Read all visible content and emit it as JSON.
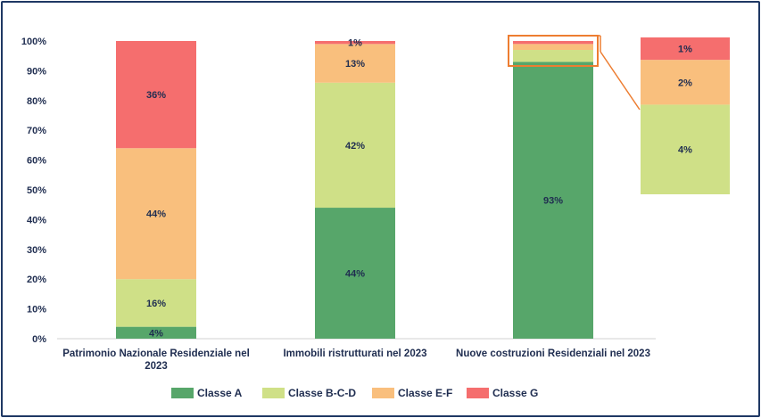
{
  "chart_data": {
    "type": "bar",
    "stacked": true,
    "categories": [
      "Patrimonio Nazionale Residenziale nel 2023",
      "Immobili ristrutturati nel 2023",
      "Nuove costruzioni Residenziali nel 2023"
    ],
    "category_lines": [
      [
        "Patrimonio Nazionale Residenziale nel",
        "2023"
      ],
      [
        "Immobili ristrutturati nel 2023"
      ],
      [
        "Nuove costruzioni Residenziali nel 2023"
      ]
    ],
    "series": [
      {
        "name": "Classe A",
        "color": "#57a66a",
        "values": [
          4,
          44,
          93
        ],
        "labels": [
          "4%",
          "44%",
          "93%"
        ]
      },
      {
        "name": "Classe B-C-D",
        "color": "#cfe087",
        "values": [
          16,
          42,
          4
        ],
        "labels": [
          "16%",
          "42%",
          ""
        ]
      },
      {
        "name": "Classe E-F",
        "color": "#f9bf7d",
        "values": [
          44,
          13,
          2
        ],
        "labels": [
          "44%",
          "13%",
          ""
        ]
      },
      {
        "name": "Classe G",
        "color": "#f56e6e",
        "values": [
          36,
          1,
          1
        ],
        "labels": [
          "36%",
          "1%",
          ""
        ]
      }
    ],
    "y_ticks": [
      "0%",
      "10%",
      "20%",
      "30%",
      "40%",
      "50%",
      "60%",
      "70%",
      "80%",
      "90%",
      "100%"
    ],
    "ylim": [
      0,
      100
    ],
    "legend_position": "bottom",
    "zoom_inset": {
      "source_category": "Nuove costruzioni Residenziali nel 2023",
      "highlight_color": "#ed7d31",
      "segments": [
        {
          "series": "Classe B-C-D",
          "label": "4%"
        },
        {
          "series": "Classe E-F",
          "label": "2%"
        },
        {
          "series": "Classe G",
          "label": "1%"
        }
      ]
    }
  }
}
